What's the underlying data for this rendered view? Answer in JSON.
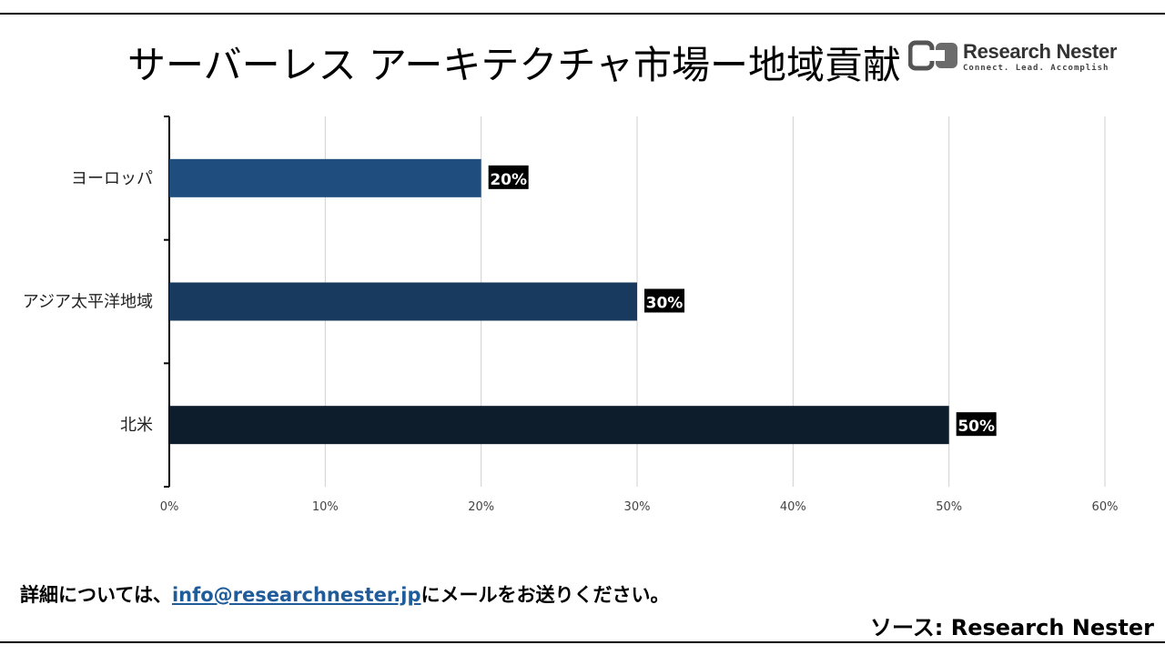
{
  "title": "サーバーレス アーキテクチャ市場ー地域貢献",
  "logo": {
    "name": "Research Nester",
    "tagline": "Connect. Lead. Accomplish"
  },
  "footer": {
    "prefix": "詳細については、",
    "email": "info@researchnester.jp",
    "suffix": "にメールをお送りください。"
  },
  "source": "ソース: Research Nester",
  "chart_data": {
    "type": "bar",
    "orientation": "horizontal",
    "categories": [
      "ヨーロッパ",
      "アジア太平洋地域",
      "北米"
    ],
    "values": [
      20,
      30,
      50
    ],
    "value_labels": [
      "20%",
      "30%",
      "50%"
    ],
    "bar_colors": [
      "#1f4e7e",
      "#173a5e",
      "#0e1d2c"
    ],
    "xlim": [
      0,
      60
    ],
    "x_ticks": [
      0,
      10,
      20,
      30,
      40,
      50,
      60
    ],
    "x_tick_labels": [
      "0%",
      "10%",
      "20%",
      "30%",
      "40%",
      "50%",
      "60%"
    ],
    "grid": "vertical",
    "legend": "none"
  }
}
